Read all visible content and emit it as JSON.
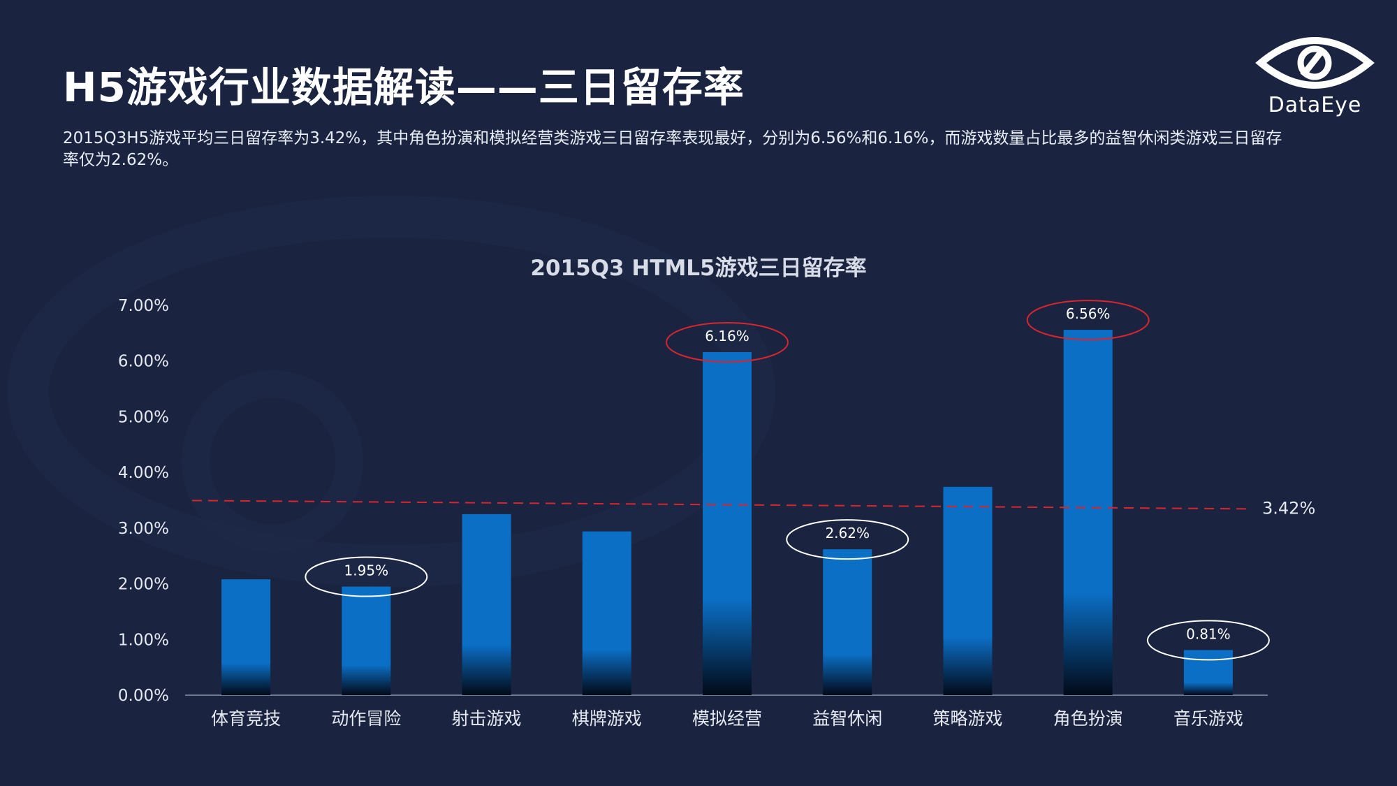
{
  "page": {
    "title": "H5游戏行业数据解读——三日留存率",
    "subtitle": "2015Q3H5游戏平均三日留存率为3.42%，其中角色扮演和模拟经营类游戏三日留存率表现最好，分别为6.56%和6.16%，而游戏数量占比最多的益智休闲类游戏三日留存率仅为2.62%。",
    "logo_text": "DataEye"
  },
  "chart_data": {
    "type": "bar",
    "title": "2015Q3 HTML5游戏三日留存率",
    "xlabel": "",
    "ylabel": "",
    "ylim": [
      0,
      7
    ],
    "yticks": [
      "0.00%",
      "1.00%",
      "2.00%",
      "3.00%",
      "4.00%",
      "5.00%",
      "6.00%",
      "7.00%"
    ],
    "categories": [
      "体育竞技",
      "动作冒险",
      "射击游戏",
      "棋牌游戏",
      "模拟经营",
      "益智休闲",
      "策略游戏",
      "角色扮演",
      "音乐游戏"
    ],
    "values": [
      2.08,
      1.95,
      3.25,
      2.94,
      6.16,
      2.62,
      3.74,
      6.56,
      0.81
    ],
    "bar_color": "#0b6fc6",
    "grid": false,
    "reference_line": {
      "value": 3.42,
      "label": "3.42%",
      "color": "#d9252e"
    },
    "data_labels": [
      {
        "index": 1,
        "text": "1.95%",
        "ring_color": "#ffffff"
      },
      {
        "index": 4,
        "text": "6.16%",
        "ring_color": "#d9252e"
      },
      {
        "index": 5,
        "text": "2.62%",
        "ring_color": "#ffffff"
      },
      {
        "index": 7,
        "text": "6.56%",
        "ring_color": "#d9252e"
      },
      {
        "index": 8,
        "text": "0.81%",
        "ring_color": "#ffffff"
      }
    ]
  }
}
